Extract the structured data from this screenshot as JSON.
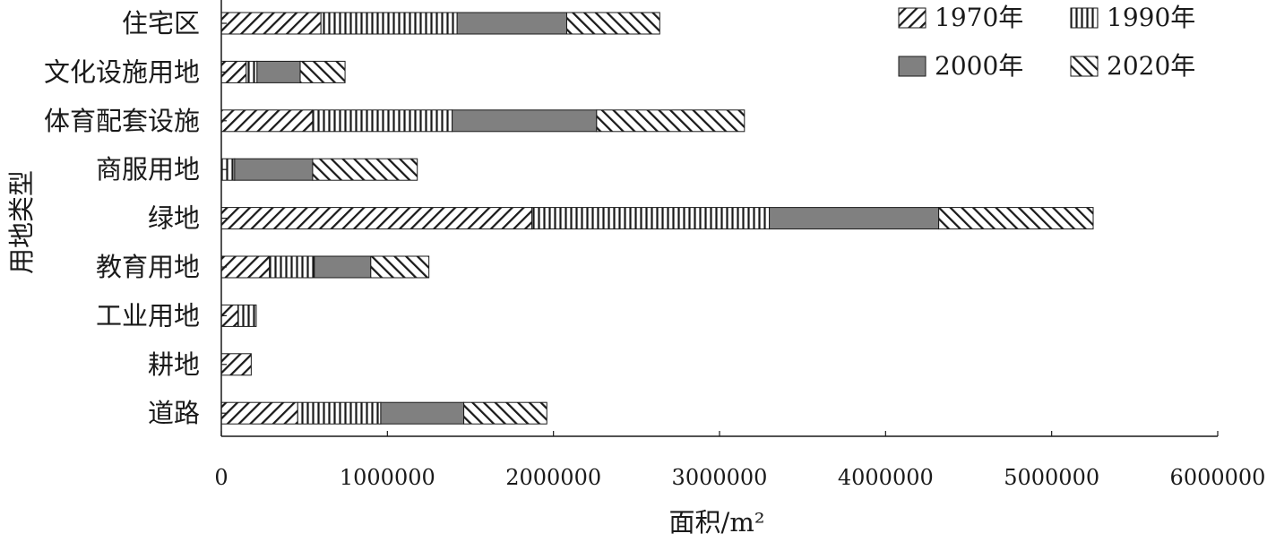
{
  "chart_data": {
    "type": "bar",
    "orientation": "horizontal",
    "stacked": true,
    "categories": [
      "住宅区",
      "文化设施用地",
      "体育配套设施",
      "商服用地",
      "绿地",
      "教育用地",
      "工业用地",
      "耕地",
      "道路"
    ],
    "series": [
      {
        "name": "1970年",
        "values": [
          600000,
          150000,
          550000,
          0,
          1870000,
          290000,
          100000,
          180000,
          460000
        ]
      },
      {
        "name": "1990年",
        "values": [
          820000,
          65000,
          840000,
          80000,
          1430000,
          270000,
          110000,
          0,
          500000
        ]
      },
      {
        "name": "2000年",
        "values": [
          660000,
          260000,
          870000,
          470000,
          1020000,
          340000,
          0,
          0,
          500000
        ]
      },
      {
        "name": "2020年",
        "values": [
          560000,
          270000,
          890000,
          630000,
          930000,
          350000,
          0,
          0,
          500000
        ]
      }
    ],
    "xlabel": "面积/m²",
    "ylabel": "用地类型",
    "xlim": [
      0,
      6000000
    ],
    "xticks": [
      "0",
      "1000000",
      "2000000",
      "3000000",
      "4000000",
      "5000000",
      "6000000"
    ],
    "grid": false,
    "legend_position": "top-right"
  },
  "colors": {
    "axis": "#1a1a1a",
    "fill_2000": "#808080",
    "pattern_line": "#1a1a1a",
    "background": "#ffffff"
  },
  "patterns": [
    "diagonal-forward",
    "vertical",
    "solid-gray",
    "diagonal-backward"
  ]
}
